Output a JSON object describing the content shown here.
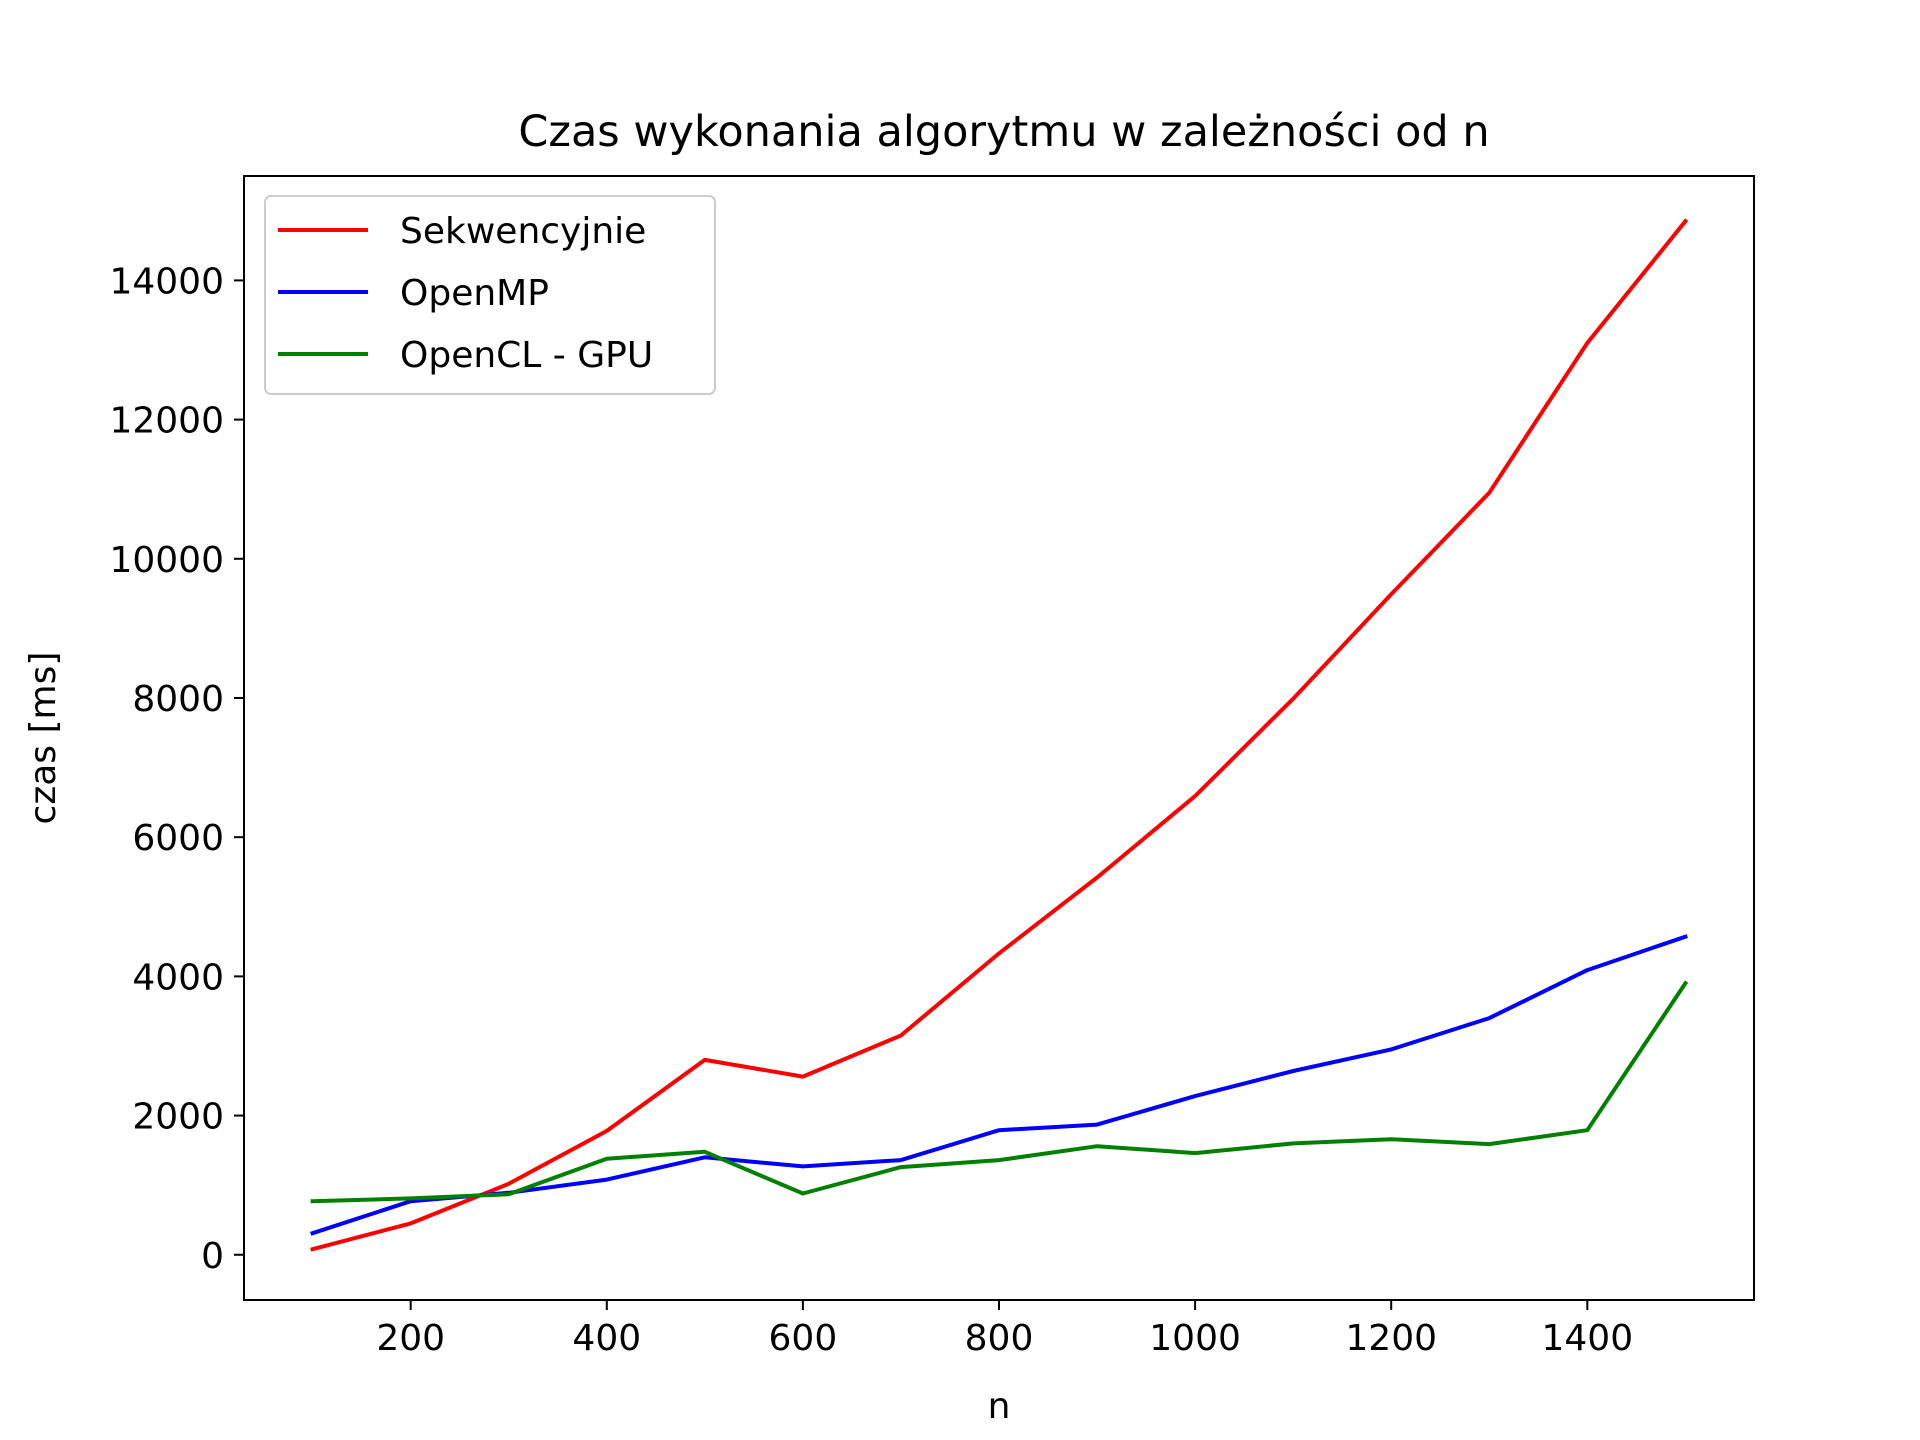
{
  "chart_data": {
    "type": "line",
    "title": "Czas wykonania algorytmu w zależności od n",
    "xlabel": "n",
    "ylabel": "czas [ms]",
    "xlim": [
      30,
      1570
    ],
    "ylim": [
      -650,
      15500
    ],
    "x_ticks": [
      200,
      400,
      600,
      800,
      1000,
      1200,
      1400
    ],
    "y_ticks": [
      0,
      2000,
      4000,
      6000,
      8000,
      10000,
      12000,
      14000
    ],
    "grid": false,
    "legend_position": "top-left",
    "x": [
      100,
      200,
      300,
      400,
      500,
      600,
      700,
      800,
      900,
      1000,
      1100,
      1200,
      1300,
      1400,
      1500
    ],
    "series": [
      {
        "name": "Sekwencyjnie",
        "color": "#ff0000",
        "values": [
          80,
          450,
          1020,
          1780,
          2800,
          2560,
          3150,
          4330,
          5420,
          6590,
          7990,
          9490,
          10950,
          13100,
          14850
        ]
      },
      {
        "name": "OpenMP",
        "color": "#0000ff",
        "values": [
          310,
          770,
          890,
          1080,
          1400,
          1270,
          1360,
          1790,
          1870,
          2280,
          2640,
          2950,
          3400,
          4090,
          4570
        ]
      },
      {
        "name": "OpenCL - GPU",
        "color": "#008000",
        "values": [
          770,
          810,
          870,
          1380,
          1480,
          880,
          1260,
          1360,
          1560,
          1460,
          1600,
          1660,
          1590,
          1790,
          3900
        ]
      }
    ]
  }
}
